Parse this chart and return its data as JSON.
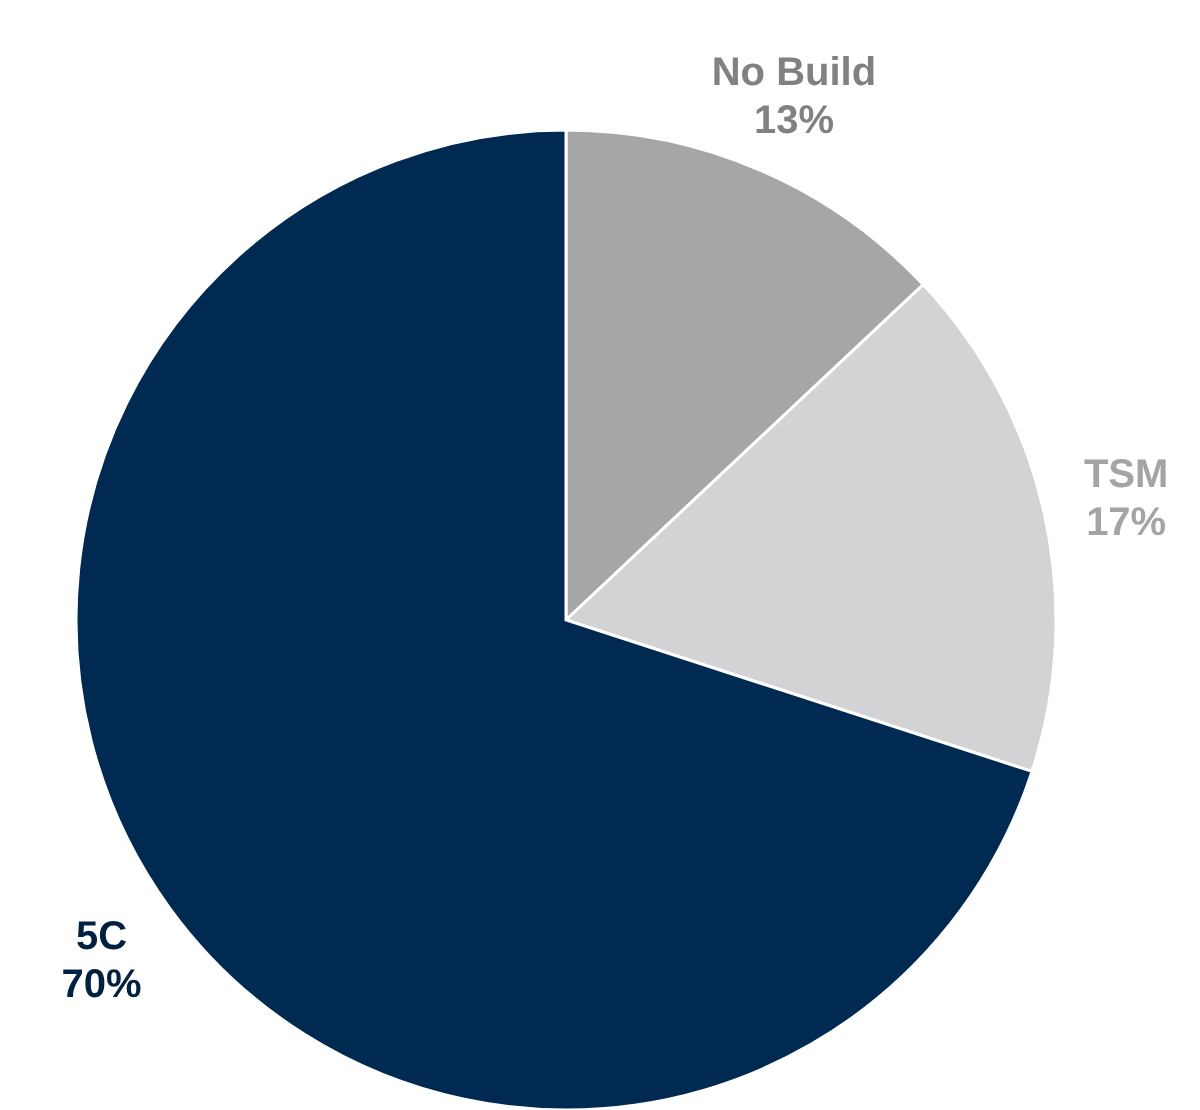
{
  "chart_data": {
    "type": "pie",
    "categories": [
      "No Build",
      "TSM",
      "5C"
    ],
    "values": [
      13,
      17,
      70
    ],
    "colors": [
      "#a6a6a8",
      "#d3d3d5",
      "#002a52"
    ],
    "value_labels": [
      "13%",
      "17%",
      "70%"
    ]
  }
}
